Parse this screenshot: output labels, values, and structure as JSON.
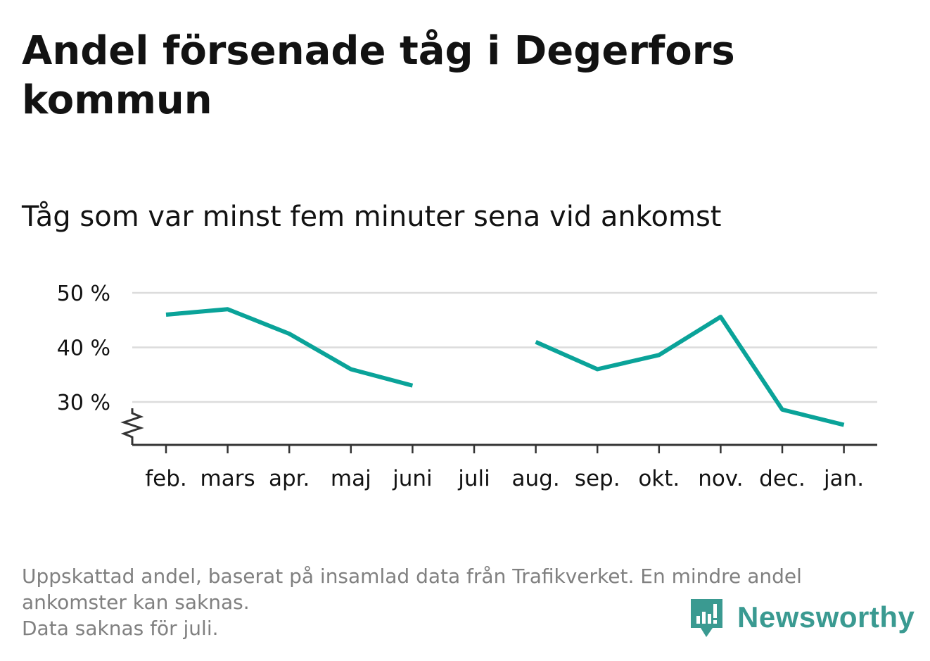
{
  "title": "Andel försenade tåg i Degerfors kommun",
  "subtitle": "Tåg som var minst fem minuter sena vid ankomst",
  "footnote": {
    "lines": [
      "Uppskattad andel, baserat på insamlad data från Trafikverket. En mindre andel",
      "ankomster kan saknas.",
      "Data saknas för juli."
    ]
  },
  "logo": {
    "text": "Newsworthy",
    "icon": "newsworthy-logo-icon"
  },
  "colors": {
    "line": "#0aa399",
    "grid": "#dcdcdc",
    "axis": "#333333",
    "text": "#121212",
    "muted": "#808080",
    "brand": "#3a9a91"
  },
  "chart_data": {
    "type": "line",
    "categories": [
      "feb.",
      "mars",
      "apr.",
      "maj",
      "juni",
      "juli",
      "aug.",
      "sep.",
      "okt.",
      "nov.",
      "dec.",
      "jan."
    ],
    "series": [
      {
        "values": [
          46,
          47,
          42.5,
          36,
          33,
          null,
          41,
          36,
          38.6,
          45.6,
          28.6,
          25.8
        ]
      }
    ],
    "y_ticks": [
      30,
      40,
      50
    ],
    "y_tick_labels": [
      "30 %",
      "40 %",
      "50 %"
    ],
    "ylim": [
      22.3,
      50
    ],
    "y_axis_break": true,
    "grid": true,
    "xlabel": "",
    "ylabel": ""
  }
}
